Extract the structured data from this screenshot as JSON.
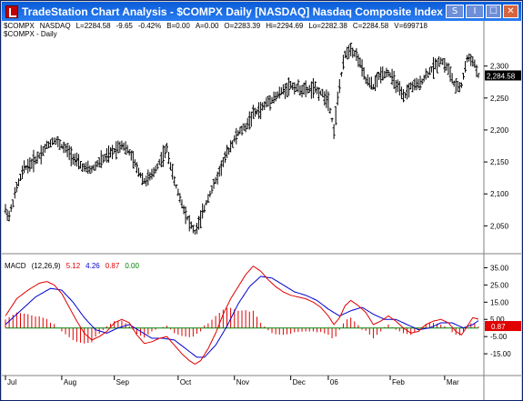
{
  "window": {
    "title": "TradeStation Chart Analysis - $COMPX  Daily  [NASDAQ] Nasdaq Composite Index",
    "buttons": [
      "S",
      "I",
      "☐",
      "✕"
    ]
  },
  "quote": {
    "symbol": "$COMPX",
    "exchange": "NASDAQ",
    "last": "L=2284.58",
    "change": "-9.65",
    "change_pct": "-0.42%",
    "bid": "B=0.00",
    "ask": "A=0.00",
    "open": "O=2283.39",
    "high": "Hi=2294.69",
    "low": "Lo=2282.38",
    "close": "C=2284.58",
    "volume": "V=699718"
  },
  "sub_label": "$COMPX - Daily",
  "macd": {
    "label": "MACD",
    "params": "(12,26,9)",
    "macd": "5.12",
    "signal": "4.26",
    "hist": "0.87",
    "zero": "0.00",
    "macd_color": "#e00000",
    "signal_color": "#0000d0",
    "hist_color": "#e00000",
    "zero_color": "#008000"
  },
  "price_axis": {
    "ticks": [
      2050,
      2100,
      2150,
      2200,
      2250,
      2300
    ],
    "range": [
      2015,
      2345
    ],
    "last_label": "2,284.58",
    "last_value": 2284.58
  },
  "macd_axis": {
    "ticks": [
      35,
      25,
      15,
      5,
      -5,
      -15
    ],
    "range": [
      -25,
      40
    ],
    "last_label": "0.87",
    "last_value": 0.87
  },
  "months": [
    "Jul",
    "Aug",
    "Sep",
    "Oct",
    "Nov",
    "Dec",
    "06",
    "Feb",
    "Mar"
  ],
  "chart_data": {
    "type": "line",
    "price_anchors": [
      [
        0,
        2075
      ],
      [
        2,
        2065
      ],
      [
        6,
        2110
      ],
      [
        10,
        2140
      ],
      [
        14,
        2148
      ],
      [
        18,
        2160
      ],
      [
        22,
        2175
      ],
      [
        26,
        2185
      ],
      [
        30,
        2175
      ],
      [
        34,
        2165
      ],
      [
        38,
        2150
      ],
      [
        42,
        2140
      ],
      [
        46,
        2138
      ],
      [
        50,
        2150
      ],
      [
        54,
        2158
      ],
      [
        58,
        2168
      ],
      [
        62,
        2178
      ],
      [
        66,
        2165
      ],
      [
        70,
        2140
      ],
      [
        74,
        2120
      ],
      [
        78,
        2128
      ],
      [
        82,
        2150
      ],
      [
        86,
        2170
      ],
      [
        90,
        2120
      ],
      [
        94,
        2085
      ],
      [
        98,
        2055
      ],
      [
        101,
        2040
      ],
      [
        104,
        2060
      ],
      [
        108,
        2095
      ],
      [
        112,
        2120
      ],
      [
        116,
        2150
      ],
      [
        120,
        2175
      ],
      [
        124,
        2195
      ],
      [
        128,
        2205
      ],
      [
        132,
        2225
      ],
      [
        136,
        2232
      ],
      [
        140,
        2245
      ],
      [
        144,
        2252
      ],
      [
        148,
        2262
      ],
      [
        152,
        2270
      ],
      [
        156,
        2265
      ],
      [
        160,
        2262
      ],
      [
        164,
        2265
      ],
      [
        168,
        2258
      ],
      [
        172,
        2248
      ],
      [
        175,
        2200
      ],
      [
        178,
        2270
      ],
      [
        181,
        2318
      ],
      [
        184,
        2328
      ],
      [
        188,
        2312
      ],
      [
        192,
        2278
      ],
      [
        196,
        2268
      ],
      [
        200,
        2288
      ],
      [
        204,
        2290
      ],
      [
        208,
        2272
      ],
      [
        212,
        2250
      ],
      [
        216,
        2268
      ],
      [
        220,
        2270
      ],
      [
        224,
        2285
      ],
      [
        228,
        2298
      ],
      [
        232,
        2310
      ],
      [
        236,
        2295
      ],
      [
        240,
        2265
      ],
      [
        243,
        2270
      ],
      [
        246,
        2312
      ],
      [
        249,
        2310
      ],
      [
        252,
        2285
      ]
    ],
    "macd_anchors": [
      [
        0,
        7
      ],
      [
        6,
        17
      ],
      [
        12,
        22
      ],
      [
        18,
        26
      ],
      [
        22,
        27
      ],
      [
        26,
        25
      ],
      [
        30,
        20
      ],
      [
        34,
        12
      ],
      [
        38,
        4
      ],
      [
        42,
        -3
      ],
      [
        46,
        -7
      ],
      [
        50,
        -5
      ],
      [
        54,
        -2
      ],
      [
        58,
        3
      ],
      [
        62,
        5
      ],
      [
        66,
        3
      ],
      [
        70,
        -4
      ],
      [
        74,
        -9
      ],
      [
        78,
        -8
      ],
      [
        82,
        -6
      ],
      [
        86,
        -5
      ],
      [
        90,
        -10
      ],
      [
        94,
        -15
      ],
      [
        98,
        -19
      ],
      [
        101,
        -21
      ],
      [
        104,
        -19
      ],
      [
        108,
        -12
      ],
      [
        112,
        -3
      ],
      [
        116,
        8
      ],
      [
        120,
        17
      ],
      [
        124,
        24
      ],
      [
        128,
        31
      ],
      [
        132,
        36
      ],
      [
        136,
        33
      ],
      [
        140,
        28
      ],
      [
        144,
        24
      ],
      [
        148,
        21
      ],
      [
        152,
        19
      ],
      [
        156,
        18
      ],
      [
        160,
        17
      ],
      [
        164,
        15
      ],
      [
        168,
        12
      ],
      [
        172,
        7
      ],
      [
        175,
        2
      ],
      [
        178,
        6
      ],
      [
        181,
        13
      ],
      [
        184,
        16
      ],
      [
        188,
        13
      ],
      [
        192,
        9
      ],
      [
        196,
        2
      ],
      [
        200,
        4
      ],
      [
        204,
        7
      ],
      [
        208,
        4
      ],
      [
        212,
        0
      ],
      [
        216,
        -3
      ],
      [
        220,
        -2
      ],
      [
        224,
        2
      ],
      [
        228,
        4
      ],
      [
        232,
        5
      ],
      [
        236,
        3
      ],
      [
        240,
        -2
      ],
      [
        243,
        -4
      ],
      [
        246,
        1
      ],
      [
        249,
        6
      ],
      [
        252,
        5.12
      ]
    ],
    "signal_anchors": [
      [
        0,
        2
      ],
      [
        8,
        10
      ],
      [
        16,
        18
      ],
      [
        24,
        23
      ],
      [
        30,
        22
      ],
      [
        36,
        15
      ],
      [
        42,
        6
      ],
      [
        48,
        -1
      ],
      [
        54,
        -3
      ],
      [
        60,
        0
      ],
      [
        66,
        2
      ],
      [
        72,
        -2
      ],
      [
        78,
        -6
      ],
      [
        84,
        -6
      ],
      [
        90,
        -7
      ],
      [
        96,
        -12
      ],
      [
        102,
        -17
      ],
      [
        106,
        -17
      ],
      [
        112,
        -10
      ],
      [
        118,
        1
      ],
      [
        124,
        14
      ],
      [
        130,
        24
      ],
      [
        136,
        30
      ],
      [
        142,
        29
      ],
      [
        148,
        25
      ],
      [
        154,
        21
      ],
      [
        160,
        19
      ],
      [
        166,
        16
      ],
      [
        172,
        11
      ],
      [
        178,
        7
      ],
      [
        184,
        10
      ],
      [
        190,
        12
      ],
      [
        196,
        8
      ],
      [
        202,
        5
      ],
      [
        208,
        5
      ],
      [
        214,
        2
      ],
      [
        220,
        -1
      ],
      [
        226,
        0
      ],
      [
        232,
        3
      ],
      [
        238,
        3
      ],
      [
        244,
        0
      ],
      [
        249,
        2
      ],
      [
        252,
        4.26
      ]
    ]
  }
}
